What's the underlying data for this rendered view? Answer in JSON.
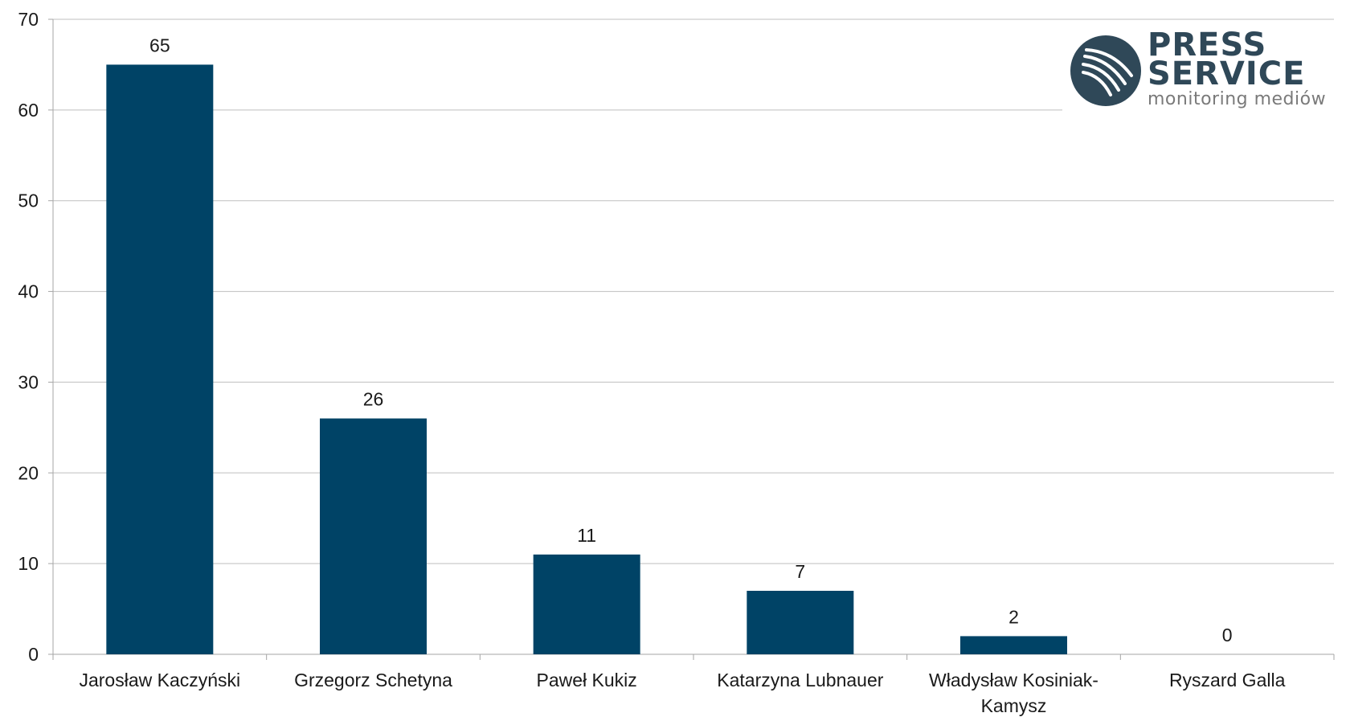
{
  "chart_data": {
    "type": "bar",
    "categories": [
      "Jarosław Kaczyński",
      "Grzegorz Schetyna",
      "Paweł Kukiz",
      "Katarzyna Lubnauer",
      "Władysław Kosiniak-Kamysz",
      "Ryszard Galla"
    ],
    "category_lines": [
      [
        "Jarosław Kaczyński"
      ],
      [
        "Grzegorz Schetyna"
      ],
      [
        "Paweł Kukiz"
      ],
      [
        "Katarzyna Lubnauer"
      ],
      [
        "Władysław Kosiniak-",
        "Kamysz"
      ],
      [
        "Ryszard Galla"
      ]
    ],
    "values": [
      65,
      26,
      11,
      7,
      2,
      0
    ],
    "data_labels": [
      "65",
      "26",
      "11",
      "7",
      "2",
      "0"
    ],
    "title": "",
    "xlabel": "",
    "ylabel": "",
    "ylim": [
      0,
      70
    ],
    "yticks": [
      "0",
      "10",
      "20",
      "30",
      "40",
      "50",
      "60",
      "70"
    ],
    "grid": true,
    "legend": "none",
    "bar_color": "#004366",
    "grid_color": "#bfbfbf"
  },
  "logo": {
    "line1": "PRESS",
    "line2": "SERVICE",
    "line3": "monitoring mediów",
    "color": "#2f4858",
    "accent": "#7a7a7a"
  }
}
